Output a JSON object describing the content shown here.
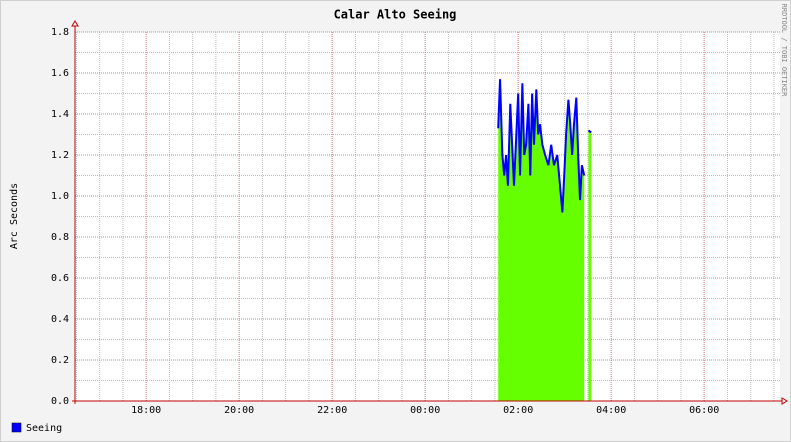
{
  "chart_data": {
    "type": "area",
    "title": "Calar Alto Seeing",
    "y_label": "Arc Seconds",
    "watermark": "RRDTOOL / TOBI OETIKER",
    "xlim": [
      16.47,
      31.63
    ],
    "xticks": [
      {
        "value": 18,
        "label": "18:00"
      },
      {
        "value": 20,
        "label": "20:00"
      },
      {
        "value": 22,
        "label": "22:00"
      },
      {
        "value": 24,
        "label": "00:00"
      },
      {
        "value": 26,
        "label": "02:00"
      },
      {
        "value": 28,
        "label": "04:00"
      },
      {
        "value": 30,
        "label": "06:00"
      }
    ],
    "ylim": [
      0,
      1.8
    ],
    "yticks": [
      {
        "value": 0,
        "label": "0.0"
      },
      {
        "value": 0.2,
        "label": "0.2"
      },
      {
        "value": 0.4,
        "label": "0.4"
      },
      {
        "value": 0.6,
        "label": "0.6"
      },
      {
        "value": 0.8,
        "label": "0.8"
      },
      {
        "value": 1,
        "label": "1.0"
      },
      {
        "value": 1.2,
        "label": "1.2"
      },
      {
        "value": 1.4,
        "label": "1.4"
      },
      {
        "value": 1.6,
        "label": "1.6"
      },
      {
        "value": 1.8,
        "label": "1.8"
      }
    ],
    "grid": true,
    "x": [
      25.57,
      25.61,
      25.66,
      25.7,
      25.74,
      25.78,
      25.83,
      25.87,
      25.91,
      25.96,
      26.0,
      26.04,
      26.09,
      26.13,
      26.17,
      26.22,
      26.26,
      26.3,
      26.34,
      26.39,
      26.43,
      26.47,
      26.52,
      26.58,
      26.65,
      26.71,
      26.77,
      26.84,
      26.9,
      26.95,
      26.99,
      27.03,
      27.08,
      27.12,
      27.16,
      27.2,
      27.25,
      27.29,
      27.33,
      27.37,
      27.42,
      27.46,
      27.51,
      27.57
    ],
    "series": [
      {
        "name": "Seeing",
        "color": "#0000ff",
        "fill": "#66ff00",
        "values": [
          1.33,
          1.57,
          1.2,
          1.1,
          1.2,
          1.05,
          1.45,
          1.25,
          1.05,
          1.3,
          1.5,
          1.1,
          1.55,
          1.2,
          1.25,
          1.45,
          1.1,
          1.5,
          1.25,
          1.52,
          1.3,
          1.35,
          1.25,
          1.2,
          1.15,
          1.25,
          1.15,
          1.2,
          1.05,
          0.92,
          1.1,
          1.3,
          1.47,
          1.35,
          1.2,
          1.35,
          1.48,
          1.2,
          0.98,
          1.15,
          1.1,
          null,
          1.32,
          1.31
        ]
      }
    ]
  }
}
